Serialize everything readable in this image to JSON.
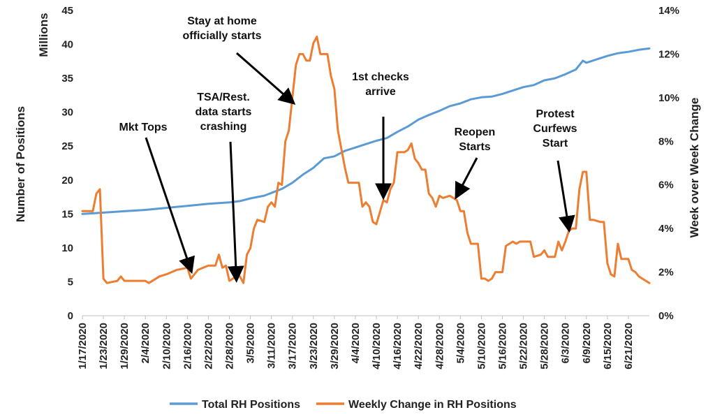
{
  "chart_data": {
    "type": "line",
    "xlabel_ticks": [
      "1/17/2020",
      "1/23/2020",
      "1/29/2020",
      "2/4/2020",
      "2/10/2020",
      "2/16/2020",
      "2/22/2020",
      "2/28/2020",
      "3/5/2020",
      "3/11/2020",
      "3/17/2020",
      "3/23/2020",
      "3/29/2020",
      "4/4/2020",
      "4/10/2020",
      "4/16/2020",
      "4/22/2020",
      "4/28/2020",
      "5/4/2020",
      "5/10/2020",
      "5/16/2020",
      "5/22/2020",
      "5/28/2020",
      "6/3/2020",
      "6/9/2020",
      "6/15/2020",
      "6/21/2020"
    ],
    "x_start": "1/17/2020",
    "x_end": "6/27/2020",
    "left_axis": {
      "title": "Number of Positions",
      "units_label": "Millions",
      "ylim": [
        0,
        45
      ],
      "ticks": [
        "0",
        "5",
        "10",
        "15",
        "20",
        "25",
        "30",
        "35",
        "40",
        "45"
      ]
    },
    "right_axis": {
      "title": "Week over Week Change",
      "ylim": [
        0,
        14
      ],
      "ticks": [
        "0%",
        "2%",
        "4%",
        "6%",
        "8%",
        "10%",
        "12%",
        "14%"
      ]
    },
    "series": [
      {
        "name": "Total RH Positions",
        "axis": "left",
        "color": "#5b9bd5",
        "points": [
          [
            "1/17/2020",
            15.0
          ],
          [
            "1/20/2020",
            15.1
          ],
          [
            "1/23/2020",
            15.2
          ],
          [
            "1/29/2020",
            15.4
          ],
          [
            "2/4/2020",
            15.6
          ],
          [
            "2/10/2020",
            15.9
          ],
          [
            "2/16/2020",
            16.2
          ],
          [
            "2/22/2020",
            16.5
          ],
          [
            "2/28/2020",
            16.7
          ],
          [
            "3/2/2020",
            16.9
          ],
          [
            "3/5/2020",
            17.3
          ],
          [
            "3/9/2020",
            17.7
          ],
          [
            "3/11/2020",
            18.1
          ],
          [
            "3/14/2020",
            18.7
          ],
          [
            "3/17/2020",
            19.6
          ],
          [
            "3/20/2020",
            20.8
          ],
          [
            "3/23/2020",
            21.8
          ],
          [
            "3/26/2020",
            23.2
          ],
          [
            "3/29/2020",
            23.5
          ],
          [
            "4/1/2020",
            24.3
          ],
          [
            "4/4/2020",
            24.8
          ],
          [
            "4/7/2020",
            25.3
          ],
          [
            "4/10/2020",
            25.8
          ],
          [
            "4/13/2020",
            26.2
          ],
          [
            "4/16/2020",
            27.1
          ],
          [
            "4/19/2020",
            27.9
          ],
          [
            "4/22/2020",
            28.9
          ],
          [
            "4/25/2020",
            29.6
          ],
          [
            "4/28/2020",
            30.2
          ],
          [
            "5/1/2020",
            30.9
          ],
          [
            "5/4/2020",
            31.3
          ],
          [
            "5/7/2020",
            31.9
          ],
          [
            "5/10/2020",
            32.2
          ],
          [
            "5/13/2020",
            32.3
          ],
          [
            "5/16/2020",
            32.7
          ],
          [
            "5/19/2020",
            33.2
          ],
          [
            "5/22/2020",
            33.7
          ],
          [
            "5/25/2020",
            34.0
          ],
          [
            "5/28/2020",
            34.7
          ],
          [
            "5/31/2020",
            35.0
          ],
          [
            "6/3/2020",
            35.6
          ],
          [
            "6/6/2020",
            36.3
          ],
          [
            "6/8/2020",
            37.6
          ],
          [
            "6/9/2020",
            37.3
          ],
          [
            "6/12/2020",
            37.8
          ],
          [
            "6/15/2020",
            38.3
          ],
          [
            "6/18/2020",
            38.7
          ],
          [
            "6/21/2020",
            38.9
          ],
          [
            "6/24/2020",
            39.2
          ],
          [
            "6/27/2020",
            39.4
          ]
        ]
      },
      {
        "name": "Weekly Change in RH Positions",
        "axis": "right",
        "color": "#ed7d31",
        "points": [
          [
            "1/17/2020",
            4.8
          ],
          [
            "1/20/2020",
            4.8
          ],
          [
            "1/21/2020",
            5.6
          ],
          [
            "1/22/2020",
            5.8
          ],
          [
            "1/23/2020",
            1.7
          ],
          [
            "1/24/2020",
            1.5
          ],
          [
            "1/27/2020",
            1.6
          ],
          [
            "1/28/2020",
            1.8
          ],
          [
            "1/29/2020",
            1.6
          ],
          [
            "2/1/2020",
            1.6
          ],
          [
            "2/4/2020",
            1.6
          ],
          [
            "2/5/2020",
            1.5
          ],
          [
            "2/8/2020",
            1.8
          ],
          [
            "2/10/2020",
            1.9
          ],
          [
            "2/13/2020",
            2.1
          ],
          [
            "2/16/2020",
            2.2
          ],
          [
            "2/17/2020",
            1.7
          ],
          [
            "2/19/2020",
            2.1
          ],
          [
            "2/22/2020",
            2.3
          ],
          [
            "2/24/2020",
            2.3
          ],
          [
            "2/25/2020",
            2.8
          ],
          [
            "2/26/2020",
            2.2
          ],
          [
            "2/27/2020",
            2.3
          ],
          [
            "2/28/2020",
            1.6
          ],
          [
            "3/1/2020",
            1.8
          ],
          [
            "3/2/2020",
            1.8
          ],
          [
            "3/3/2020",
            1.5
          ],
          [
            "3/4/2020",
            2.8
          ],
          [
            "3/5/2020",
            3.1
          ],
          [
            "3/6/2020",
            4.0
          ],
          [
            "3/7/2020",
            4.4
          ],
          [
            "3/9/2020",
            4.3
          ],
          [
            "3/10/2020",
            5.0
          ],
          [
            "3/11/2020",
            5.2
          ],
          [
            "3/12/2020",
            5.0
          ],
          [
            "3/13/2020",
            6.1
          ],
          [
            "3/14/2020",
            6.0
          ],
          [
            "3/15/2020",
            8.0
          ],
          [
            "3/16/2020",
            8.5
          ],
          [
            "3/17/2020",
            10.0
          ],
          [
            "3/18/2020",
            11.5
          ],
          [
            "3/19/2020",
            12.0
          ],
          [
            "3/20/2020",
            12.0
          ],
          [
            "3/21/2020",
            11.7
          ],
          [
            "3/22/2020",
            11.7
          ],
          [
            "3/23/2020",
            12.5
          ],
          [
            "3/24/2020",
            12.8
          ],
          [
            "3/25/2020",
            12.0
          ],
          [
            "3/27/2020",
            12.0
          ],
          [
            "3/28/2020",
            11.0
          ],
          [
            "3/29/2020",
            10.4
          ],
          [
            "3/30/2020",
            8.5
          ],
          [
            "4/1/2020",
            6.8
          ],
          [
            "4/2/2020",
            6.1
          ],
          [
            "4/5/2020",
            6.1
          ],
          [
            "4/6/2020",
            5.0
          ],
          [
            "4/7/2020",
            5.2
          ],
          [
            "4/8/2020",
            5.0
          ],
          [
            "4/9/2020",
            4.3
          ],
          [
            "4/10/2020",
            4.2
          ],
          [
            "4/12/2020",
            5.3
          ],
          [
            "4/13/2020",
            5.2
          ],
          [
            "4/14/2020",
            5.8
          ],
          [
            "4/15/2020",
            6.1
          ],
          [
            "4/16/2020",
            7.5
          ],
          [
            "4/18/2020",
            7.5
          ],
          [
            "4/19/2020",
            7.6
          ],
          [
            "4/20/2020",
            7.9
          ],
          [
            "4/21/2020",
            7.2
          ],
          [
            "4/22/2020",
            7.0
          ],
          [
            "4/23/2020",
            6.7
          ],
          [
            "4/24/2020",
            6.7
          ],
          [
            "4/25/2020",
            5.6
          ],
          [
            "4/26/2020",
            5.4
          ],
          [
            "4/27/2020",
            5.0
          ],
          [
            "4/28/2020",
            5.5
          ],
          [
            "4/29/2020",
            5.4
          ],
          [
            "5/1/2020",
            5.5
          ],
          [
            "5/3/2020",
            5.3
          ],
          [
            "5/4/2020",
            4.8
          ],
          [
            "5/5/2020",
            4.8
          ],
          [
            "5/6/2020",
            3.8
          ],
          [
            "5/7/2020",
            3.3
          ],
          [
            "5/9/2020",
            3.3
          ],
          [
            "5/10/2020",
            1.7
          ],
          [
            "5/11/2020",
            1.7
          ],
          [
            "5/12/2020",
            1.6
          ],
          [
            "5/13/2020",
            1.7
          ],
          [
            "5/14/2020",
            2.0
          ],
          [
            "5/16/2020",
            2.0
          ],
          [
            "5/17/2020",
            3.2
          ],
          [
            "5/18/2020",
            3.3
          ],
          [
            "5/19/2020",
            3.4
          ],
          [
            "5/20/2020",
            3.3
          ],
          [
            "5/21/2020",
            3.4
          ],
          [
            "5/24/2020",
            3.4
          ],
          [
            "5/25/2020",
            2.7
          ],
          [
            "5/27/2020",
            2.8
          ],
          [
            "5/28/2020",
            3.0
          ],
          [
            "5/29/2020",
            2.7
          ],
          [
            "5/31/2020",
            2.7
          ],
          [
            "6/1/2020",
            3.4
          ],
          [
            "6/2/2020",
            3.0
          ],
          [
            "6/3/2020",
            3.4
          ],
          [
            "6/4/2020",
            3.9
          ],
          [
            "6/5/2020",
            4.0
          ],
          [
            "6/6/2020",
            4.0
          ],
          [
            "6/7/2020",
            5.8
          ],
          [
            "6/8/2020",
            6.6
          ],
          [
            "6/9/2020",
            6.6
          ],
          [
            "6/10/2020",
            4.4
          ],
          [
            "6/11/2020",
            4.4
          ],
          [
            "6/13/2020",
            4.3
          ],
          [
            "6/14/2020",
            4.3
          ],
          [
            "6/15/2020",
            2.4
          ],
          [
            "6/16/2020",
            1.9
          ],
          [
            "6/17/2020",
            1.8
          ],
          [
            "6/18/2020",
            3.3
          ],
          [
            "6/19/2020",
            2.6
          ],
          [
            "6/21/2020",
            2.6
          ],
          [
            "6/22/2020",
            2.1
          ],
          [
            "6/23/2020",
            2.0
          ],
          [
            "6/24/2020",
            1.8
          ],
          [
            "6/26/2020",
            1.6
          ],
          [
            "6/27/2020",
            1.5
          ]
        ]
      }
    ],
    "annotations": [
      {
        "lines": [
          "Mkt Tops"
        ],
        "point_to": [
          "2/17/2020",
          2.1
        ]
      },
      {
        "lines": [
          "TSA/Rest.",
          "data starts",
          "crashing"
        ],
        "point_to": [
          "3/1/2020",
          1.7
        ]
      },
      {
        "lines": [
          "Stay at home",
          "officially starts"
        ],
        "point_to": [
          "3/17/2020",
          9.8
        ]
      },
      {
        "lines": [
          "1st checks",
          "arrive"
        ],
        "point_to": [
          "4/12/2020",
          5.5
        ]
      },
      {
        "lines": [
          "Reopen",
          "Starts"
        ],
        "point_to": [
          "5/3/2020",
          5.5
        ]
      },
      {
        "lines": [
          "Protest",
          "Curfews",
          "Start"
        ],
        "point_to": [
          "6/4/2020",
          4.0
        ]
      }
    ],
    "legend_position": "bottom"
  }
}
